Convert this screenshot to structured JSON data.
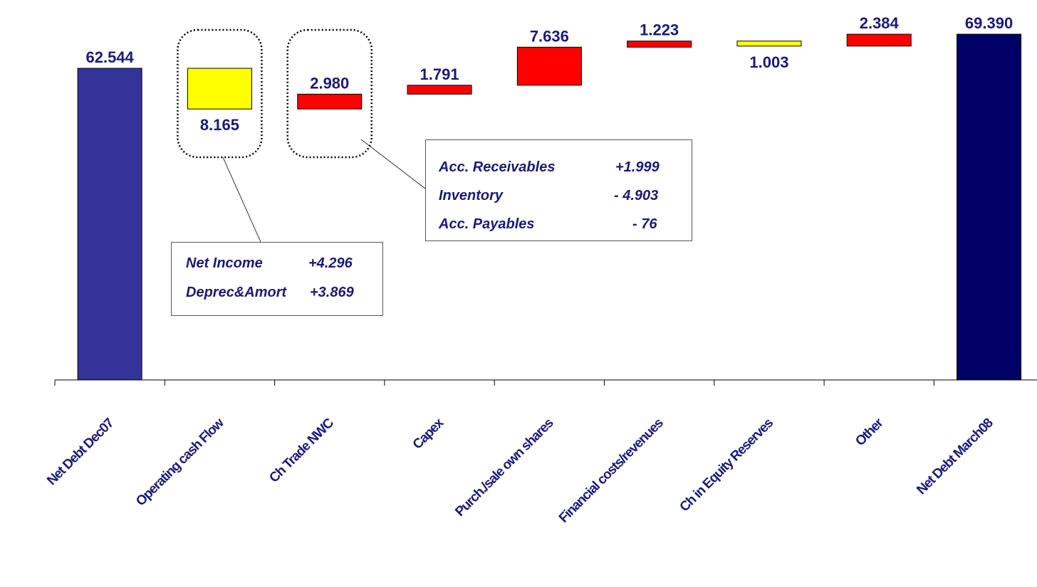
{
  "chart_data": {
    "type": "waterfall",
    "categories": [
      "Net Debt Dec07",
      "Operating cash Flow",
      "Ch Trade NWC",
      "Capex",
      "Purch./sale own shares",
      "Financial costs/revenues",
      "Ch in Equity Reserves",
      "Other",
      "Net Debt March08"
    ],
    "value_labels": [
      "62.544",
      "8.165",
      "2.980",
      "1.791",
      "7.636",
      "1.223",
      "1.003",
      "2.384",
      "69.390"
    ],
    "bars": [
      {
        "category": "Net Debt Dec07",
        "kind": "total",
        "start": 0,
        "end": 62544,
        "color": "#333399"
      },
      {
        "category": "Operating cash Flow",
        "kind": "decrease",
        "start": 62544,
        "end": 54379,
        "color": "#ffff00"
      },
      {
        "category": "Ch Trade NWC",
        "kind": "increase",
        "start": 54379,
        "end": 57359,
        "color": "#ff0000"
      },
      {
        "category": "Capex",
        "kind": "increase",
        "start": 57359,
        "end": 59150,
        "color": "#ff0000"
      },
      {
        "category": "Purch./sale own shares",
        "kind": "increase",
        "start": 59150,
        "end": 66786,
        "color": "#ff0000"
      },
      {
        "category": "Financial costs/revenues",
        "kind": "increase",
        "start": 66786,
        "end": 68009,
        "color": "#ff0000"
      },
      {
        "category": "Ch in Equity Reserves",
        "kind": "decrease",
        "start": 68009,
        "end": 67006,
        "color": "#ffff00"
      },
      {
        "category": "Other",
        "kind": "increase",
        "start": 67006,
        "end": 69390,
        "color": "#ff0000"
      },
      {
        "category": "Net Debt March08",
        "kind": "total",
        "start": 0,
        "end": 69390,
        "color": "#000066"
      }
    ],
    "ylim": [
      0,
      70000
    ],
    "grid": false,
    "title": "",
    "xlabel": "",
    "ylabel": ""
  },
  "callouts": {
    "operating": {
      "rows": [
        {
          "label": "Net Income",
          "value": "+4.296"
        },
        {
          "label": "Deprec&Amort",
          "value": "+3.869"
        }
      ]
    },
    "nwc": {
      "rows": [
        {
          "label": "Acc. Receivables",
          "value": "+1.999"
        },
        {
          "label": "Inventory",
          "value": "- 4.903"
        },
        {
          "label": "Acc. Payables",
          "value": "- 76"
        }
      ]
    }
  }
}
